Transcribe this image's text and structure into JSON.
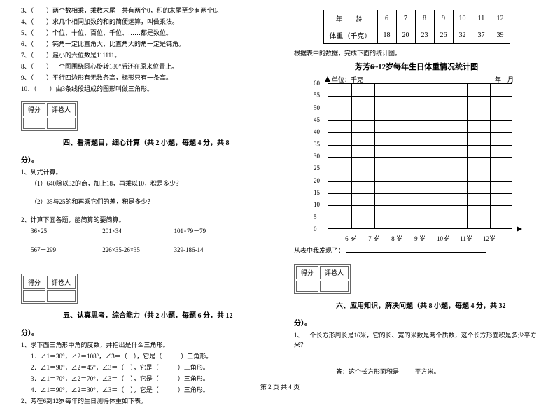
{
  "left": {
    "tf_items": [
      "3、（　　）两个数相乘，乘数末尾一共有两个0，积的末尾至少有两个0。",
      "4、（　　）求几个相同加数的和的简便运算，叫做乘法。",
      "5、（　　）个位、十位、百位、千位、……都是数位。",
      "6、（　　）钝角一定比直角大，比直角大的角一定是钝角。",
      "7、（　　）最小的六位数是111111。",
      "8、（　　）一个图围绕圆心旋转180°后还在原来位置上。",
      "9、（　　）平行四边形有无数条高，梯形只有一条高。",
      "10、（　　）由3条线段组成的图形叫做三角形。"
    ],
    "score_labels": [
      "得分",
      "评卷人"
    ],
    "sec4_title": "四、看清题目，细心计算（共 2 小题，每题 4 分，共 8",
    "sec4_tail": "分）。",
    "q1_head": "1、列式计算。",
    "q1_1": "（1）640除以32的商，加上18，再乘以10，积是多少？",
    "q1_2": "（2）35与25的和再乘它们的差，积是多少？",
    "q2_head": "2、计算下面各题，能简算的要简算。",
    "calc_row1": [
      "36×25",
      "201×34",
      "101×79－79"
    ],
    "calc_row2": [
      "567－299",
      "226×35-26×35",
      "329-186-14"
    ],
    "sec5_title": "五、认真思考，综合能力（共 2 小题，每题 6 分，共 12",
    "sec5_tail": "分）。",
    "q5_1_head": "1、求下面三角形中角的度数，并指出是什么三角形。",
    "tri_lines": [
      "1．∠1＝30°，∠2＝108°，∠3＝（　），它是（　　　）三角形。",
      "2．∠1＝90°，∠2＝45°，∠3＝（　），它是（　　　）三角形。",
      "3．∠1＝70°，∠2＝70°，∠3＝（　），它是（　　　）三角形。",
      "4．∠1＝90°，∠2＝30°，∠3＝（　），它是（　　　）三角形。"
    ],
    "q5_2": "2、芳在6到12岁每年的生日测得体重如下表。"
  },
  "right": {
    "table": {
      "row1_label": "年　龄",
      "row1": [
        "6",
        "7",
        "8",
        "9",
        "10",
        "11",
        "12"
      ],
      "row2_label": "体重（千克）",
      "row2": [
        "18",
        "20",
        "23",
        "26",
        "32",
        "37",
        "39"
      ]
    },
    "instr": "根据表中的数据，完成下面的统计图。",
    "chart_title": "芳芳6~12岁每年生日体重情况统计图",
    "unit": "单位：千克",
    "date": "年　月",
    "y_ticks": [
      "60",
      "55",
      "50",
      "45",
      "40",
      "35",
      "30",
      "25",
      "20",
      "15",
      "10",
      "5",
      "0"
    ],
    "x_ticks": [
      "6 岁",
      "7 岁",
      "8 岁",
      "9 岁",
      "10岁",
      "11岁",
      "12岁"
    ],
    "found": "从表中我发现了：",
    "sec6_title": "六、应用知识，解决问题（共 8 小题，每题 4 分，共 32",
    "sec6_tail": "分）。",
    "q6_1": "1、一个长方形周长是16米，它的长、宽的米数是两个质数，这个长方形面积是多少平方米？",
    "answer": "答：这个长方形面积是_____平方米。"
  },
  "footer": "第 2 页 共 4 页"
}
